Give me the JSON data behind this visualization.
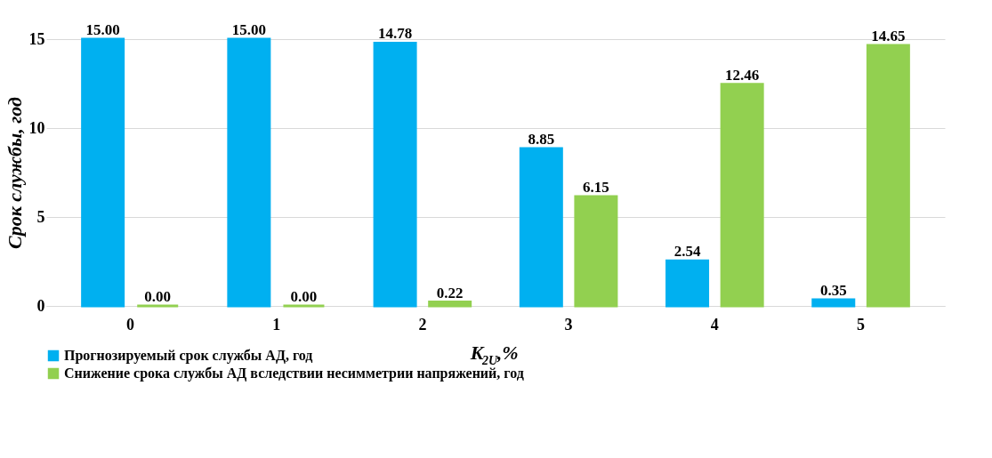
{
  "chart_data": {
    "type": "bar",
    "ylabel": "Срок службы, год",
    "xlabel": "K$_{2U}$,%",
    "categories": [
      "0",
      "1",
      "2",
      "3",
      "4",
      "5"
    ],
    "series": [
      {
        "name": "Прогнозируемый срок службы АД, год",
        "color": "#00b0f0",
        "values": [
          15.0,
          15.0,
          14.78,
          8.85,
          2.54,
          0.35
        ]
      },
      {
        "name": "Снижение срока службы АД вследствии несимметрии напряжений, год",
        "color": "#92d050",
        "values": [
          0.0,
          0.0,
          0.22,
          6.15,
          12.46,
          14.65
        ]
      }
    ],
    "ylim": [
      0,
      15
    ],
    "yticks": [
      0,
      5,
      10,
      15
    ],
    "grid": "y",
    "legend": "bottom",
    "value_labels": [
      [
        "15.00",
        "15.00",
        "14.78",
        "8.85",
        "2.54",
        "0.35"
      ],
      [
        "0.00",
        "0.00",
        "0.22",
        "6.15",
        "12.46",
        "14.65"
      ]
    ]
  }
}
